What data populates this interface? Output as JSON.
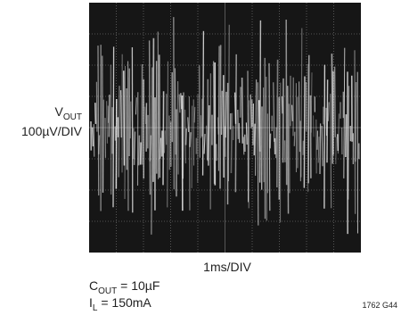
{
  "y_label": {
    "symbol": "V",
    "subscript": "OUT",
    "scale": "100µV/DIV"
  },
  "x_label": "1ms/DIV",
  "conditions": [
    {
      "symbol": "C",
      "subscript": "OUT",
      "rest": " = 10µF"
    },
    {
      "symbol": "I",
      "subscript": "L",
      "rest": " = 150mA"
    }
  ],
  "figure_id": "1762 G44"
}
